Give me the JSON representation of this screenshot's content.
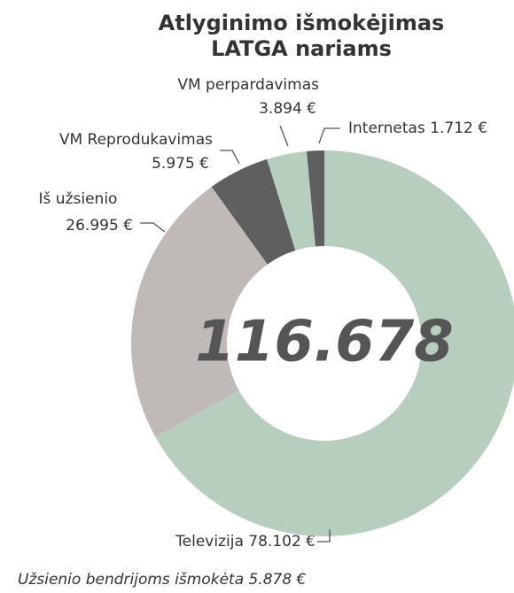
{
  "chart_data": {
    "type": "donut",
    "title": [
      "Atlyginimo išmokėjimas",
      "LATGA nariams"
    ],
    "categories": [
      "Televizija",
      "Iš užsienio",
      "VM Reprodukavimas",
      "VM perpardavimas",
      "Internetas"
    ],
    "values": [
      78102,
      26995,
      5975,
      3894,
      1712
    ],
    "value_labels": [
      "78.102 €",
      "26.995 €",
      "5.975 €",
      "3.894 €",
      "1.712 €"
    ],
    "colors": [
      "#b7cdbd",
      "#bfb9b8",
      "#5f5f5f",
      "#b7cdbd",
      "#5f5f5f"
    ],
    "center_text": "116.678",
    "note": "Užsienio bendrijoms išmokėta 5.878 €"
  }
}
